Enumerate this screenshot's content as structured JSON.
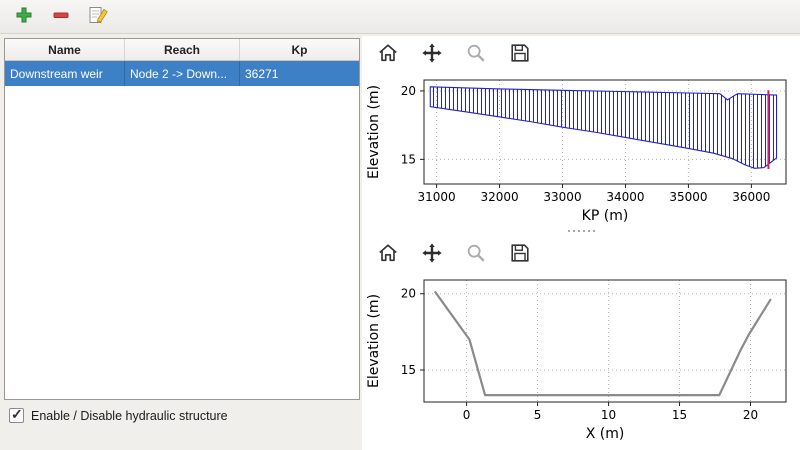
{
  "colors": {
    "selection": "#3d80c6",
    "hatch": "#2323c0",
    "marker": "#de1f4d",
    "profile": "#8a8a8a",
    "window_bg": "#f1efec"
  },
  "main_toolbar": {
    "buttons": [
      {
        "name": "add",
        "icon": "plus-icon"
      },
      {
        "name": "remove",
        "icon": "minus-icon"
      },
      {
        "name": "edit",
        "icon": "edit-icon"
      }
    ]
  },
  "structures_table": {
    "columns": [
      "Name",
      "Reach",
      "Kp"
    ],
    "rows": [
      {
        "name": "Downstream weir",
        "reach": "Node 2 -> Down...",
        "kp": "36271"
      }
    ]
  },
  "enable_checkbox": {
    "label": "Enable / Disable hydraulic structure",
    "checked": true
  },
  "plot_toolbar": {
    "icons": [
      "home-icon",
      "pan-icon",
      "zoom-icon",
      "save-icon"
    ]
  },
  "chart_data": [
    {
      "type": "area",
      "title": "",
      "xlabel": "KP (m)",
      "ylabel": "Elevation (m)",
      "xlim": [
        30800,
        36550
      ],
      "ylim": [
        13.2,
        20.8
      ],
      "xticks": [
        31000,
        32000,
        33000,
        34000,
        35000,
        36000
      ],
      "yticks": [
        15,
        20
      ],
      "grid": true,
      "hatch": "vertical",
      "area": {
        "top": [
          [
            30900,
            20.3
          ],
          [
            32000,
            20.15
          ],
          [
            33000,
            20.05
          ],
          [
            34000,
            19.95
          ],
          [
            35000,
            19.85
          ],
          [
            35500,
            19.8
          ],
          [
            35620,
            19.35
          ],
          [
            35780,
            19.8
          ],
          [
            36100,
            19.75
          ],
          [
            36400,
            19.7
          ]
        ],
        "bottom": [
          [
            30900,
            18.85
          ],
          [
            31500,
            18.45
          ],
          [
            32000,
            18.1
          ],
          [
            32500,
            17.75
          ],
          [
            33000,
            17.35
          ],
          [
            33500,
            17.0
          ],
          [
            34000,
            16.6
          ],
          [
            34500,
            16.2
          ],
          [
            35000,
            15.8
          ],
          [
            35400,
            15.45
          ],
          [
            35700,
            15.05
          ],
          [
            35900,
            14.6
          ],
          [
            36050,
            14.35
          ],
          [
            36200,
            14.4
          ],
          [
            36400,
            15.1
          ]
        ]
      },
      "marker_line": {
        "x": 36271,
        "y": [
          14.3,
          20.05
        ]
      }
    },
    {
      "type": "line",
      "title": "",
      "xlabel": "X (m)",
      "ylabel": "Elevation (m)",
      "xlim": [
        -3,
        22.5
      ],
      "ylim": [
        12.9,
        20.9
      ],
      "xticks": [
        0,
        5,
        10,
        15,
        20
      ],
      "yticks": [
        15,
        20
      ],
      "grid": true,
      "lines": [
        {
          "name": "cross-section-profile",
          "width": 2.2,
          "points": [
            [
              -2.2,
              20.1
            ],
            [
              0.2,
              17.0
            ],
            [
              1.3,
              13.35
            ],
            [
              17.8,
              13.35
            ],
            [
              19.3,
              16.3
            ],
            [
              19.9,
              17.35
            ],
            [
              21.4,
              19.6
            ]
          ]
        }
      ]
    }
  ]
}
